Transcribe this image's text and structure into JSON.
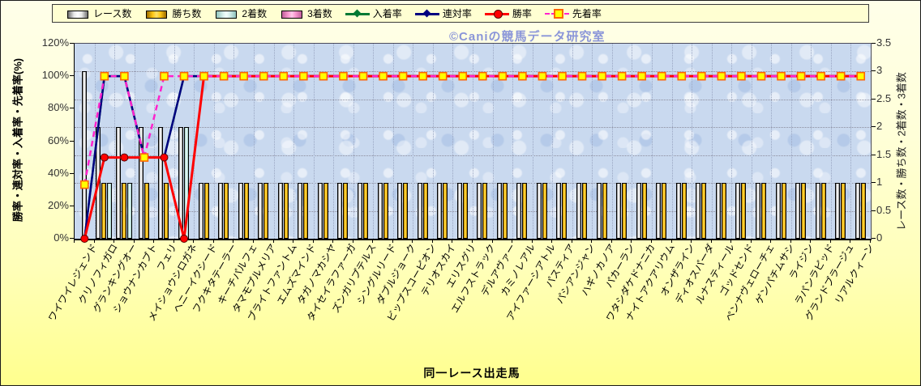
{
  "watermark": "©Caniの競馬データ研究室",
  "colors": {
    "background_top": "#ffffe9",
    "background_bottom": "#ffff8e",
    "plot_background": "#c9d9ef",
    "race_bar": "#ffffff",
    "win_bar": "#ffc613",
    "second_bar": "#dcf2ee",
    "third_bar": "#ff9fd5",
    "place_line": "#007A33",
    "rentai_line": "#000080",
    "win_line": "#ff0000",
    "first_line": "#ff22cc",
    "first_marker_fill": "#ffff00",
    "first_marker_border": "#ff6600"
  },
  "legend": {
    "items": [
      {
        "label": "レース数",
        "kind": "bar",
        "color_key": "race_bar"
      },
      {
        "label": "勝ち数",
        "kind": "bar",
        "color_key": "win_bar"
      },
      {
        "label": "2着数",
        "kind": "bar",
        "color_key": "second_bar"
      },
      {
        "label": "3着数",
        "kind": "bar",
        "color_key": "third_bar"
      },
      {
        "label": "入着率",
        "kind": "line-diamond",
        "color_key": "place_line"
      },
      {
        "label": "連対率",
        "kind": "line-diamond",
        "color_key": "rentai_line"
      },
      {
        "label": "勝率",
        "kind": "line-circle",
        "color_key": "win_line"
      },
      {
        "label": "先着率",
        "kind": "line-square-dashed",
        "color_key": "first_line"
      }
    ]
  },
  "chart_data": {
    "type": "bar-line-combo",
    "title": "",
    "x_axis": {
      "title": "同一レース出走馬"
    },
    "left_axis": {
      "title": "勝率・連対率・入着率・先着率(%)",
      "min": 0,
      "max": 120,
      "tick_labels": [
        "0%",
        "20%",
        "40%",
        "60%",
        "80%",
        "100%",
        "120%"
      ],
      "tick_values": [
        0,
        20,
        40,
        60,
        80,
        100,
        120
      ]
    },
    "right_axis": {
      "title": "レース数・勝ち数・2着数・3着数",
      "min": 0,
      "max": 3.5,
      "tick_labels": [
        "0",
        "0.5",
        "1",
        "1.5",
        "2",
        "2.5",
        "3",
        "3.5"
      ],
      "tick_values": [
        0,
        0.5,
        1,
        1.5,
        2,
        2.5,
        3,
        3.5
      ]
    },
    "grid": {
      "horizontal_step_right_axis": 0.5,
      "vertical_per_category": true
    },
    "categories": [
      "ワイワイレジェンド",
      "クリノフィガロ",
      "グランキングオー",
      "ショウナンカブト",
      "フェリ",
      "メイショウシロガネ",
      "ヘニーイクシード",
      "フクキタテーラー",
      "キーチパルフェ",
      "タマモプルメリア",
      "ブライトファントム",
      "エムズマインド",
      "タガノマカシヤ",
      "タイセイラファーガ",
      "ズンガリプテルス",
      "シングルリード",
      "ダブルジョーク",
      "ビップスコーピオン",
      "テリオスカイ",
      "エリスグリ",
      "エルフストラック",
      "デルアヴァー",
      "カミノレアル",
      "アイファーシアトル",
      "パスティア",
      "パシアンジャン",
      "ハギノカノア",
      "パカーラン",
      "ワタシダケドナニカ",
      "ナイトアクアリウム",
      "オンザライン",
      "ディオスパーダ",
      "ルナスティール",
      "ゴッドセンド",
      "ペンナヴェローチェ",
      "ゲンパチムサシ",
      "ライジン",
      "ラパンラピッド",
      "グランドブラージュ",
      "リアルクィーン"
    ],
    "series": [
      {
        "name": "レース数",
        "type": "bar",
        "axis": "right",
        "color_key": "race_bar",
        "values": [
          3,
          2,
          2,
          2,
          2,
          2,
          1,
          1,
          1,
          1,
          1,
          1,
          1,
          1,
          1,
          1,
          1,
          1,
          1,
          1,
          1,
          1,
          1,
          1,
          1,
          1,
          1,
          1,
          1,
          1,
          1,
          1,
          1,
          1,
          1,
          1,
          1,
          1,
          1,
          1
        ]
      },
      {
        "name": "勝ち数",
        "type": "bar",
        "axis": "right",
        "color_key": "win_bar",
        "values": [
          0,
          1,
          1,
          1,
          1,
          0,
          1,
          1,
          1,
          1,
          1,
          1,
          1,
          1,
          1,
          1,
          1,
          1,
          1,
          1,
          1,
          1,
          1,
          1,
          1,
          1,
          1,
          1,
          1,
          1,
          1,
          1,
          1,
          1,
          1,
          1,
          1,
          1,
          1,
          1
        ]
      },
      {
        "name": "2着数",
        "type": "bar",
        "axis": "right",
        "color_key": "second_bar",
        "values": [
          0,
          1,
          1,
          0,
          0,
          2,
          0,
          0,
          0,
          0,
          0,
          0,
          0,
          0,
          0,
          0,
          0,
          0,
          0,
          0,
          0,
          0,
          0,
          0,
          0,
          0,
          0,
          0,
          0,
          0,
          0,
          0,
          0,
          0,
          0,
          0,
          0,
          0,
          0,
          0
        ]
      },
      {
        "name": "3着数",
        "type": "bar",
        "axis": "right",
        "color_key": "third_bar",
        "values": [
          0,
          0,
          0,
          0,
          0,
          0,
          0,
          0,
          0,
          0,
          0,
          0,
          0,
          0,
          0,
          0,
          0,
          0,
          0,
          0,
          0,
          0,
          0,
          0,
          0,
          0,
          0,
          0,
          0,
          0,
          0,
          0,
          0,
          0,
          0,
          0,
          0,
          0,
          0,
          0
        ]
      },
      {
        "name": "入着率",
        "type": "line",
        "axis": "left",
        "color_key": "place_line",
        "marker": "diamond",
        "values": [
          0,
          100,
          100,
          50,
          50,
          100,
          100,
          100,
          100,
          100,
          100,
          100,
          100,
          100,
          100,
          100,
          100,
          100,
          100,
          100,
          100,
          100,
          100,
          100,
          100,
          100,
          100,
          100,
          100,
          100,
          100,
          100,
          100,
          100,
          100,
          100,
          100,
          100,
          100,
          100
        ]
      },
      {
        "name": "連対率",
        "type": "line",
        "axis": "left",
        "color_key": "rentai_line",
        "marker": "diamond",
        "values": [
          0,
          100,
          100,
          50,
          50,
          100,
          100,
          100,
          100,
          100,
          100,
          100,
          100,
          100,
          100,
          100,
          100,
          100,
          100,
          100,
          100,
          100,
          100,
          100,
          100,
          100,
          100,
          100,
          100,
          100,
          100,
          100,
          100,
          100,
          100,
          100,
          100,
          100,
          100,
          100
        ]
      },
      {
        "name": "勝率",
        "type": "line",
        "axis": "left",
        "color_key": "win_line",
        "marker": "circle",
        "values": [
          0,
          50,
          50,
          50,
          50,
          0,
          100,
          100,
          100,
          100,
          100,
          100,
          100,
          100,
          100,
          100,
          100,
          100,
          100,
          100,
          100,
          100,
          100,
          100,
          100,
          100,
          100,
          100,
          100,
          100,
          100,
          100,
          100,
          100,
          100,
          100,
          100,
          100,
          100,
          100
        ]
      },
      {
        "name": "先着率",
        "type": "line",
        "axis": "left",
        "color_key": "first_line",
        "marker": "square",
        "dashed": true,
        "values": [
          33.3,
          100,
          100,
          50,
          100,
          100,
          100,
          100,
          100,
          100,
          100,
          100,
          100,
          100,
          100,
          100,
          100,
          100,
          100,
          100,
          100,
          100,
          100,
          100,
          100,
          100,
          100,
          100,
          100,
          100,
          100,
          100,
          100,
          100,
          100,
          100,
          100,
          100,
          100,
          100
        ]
      }
    ]
  }
}
